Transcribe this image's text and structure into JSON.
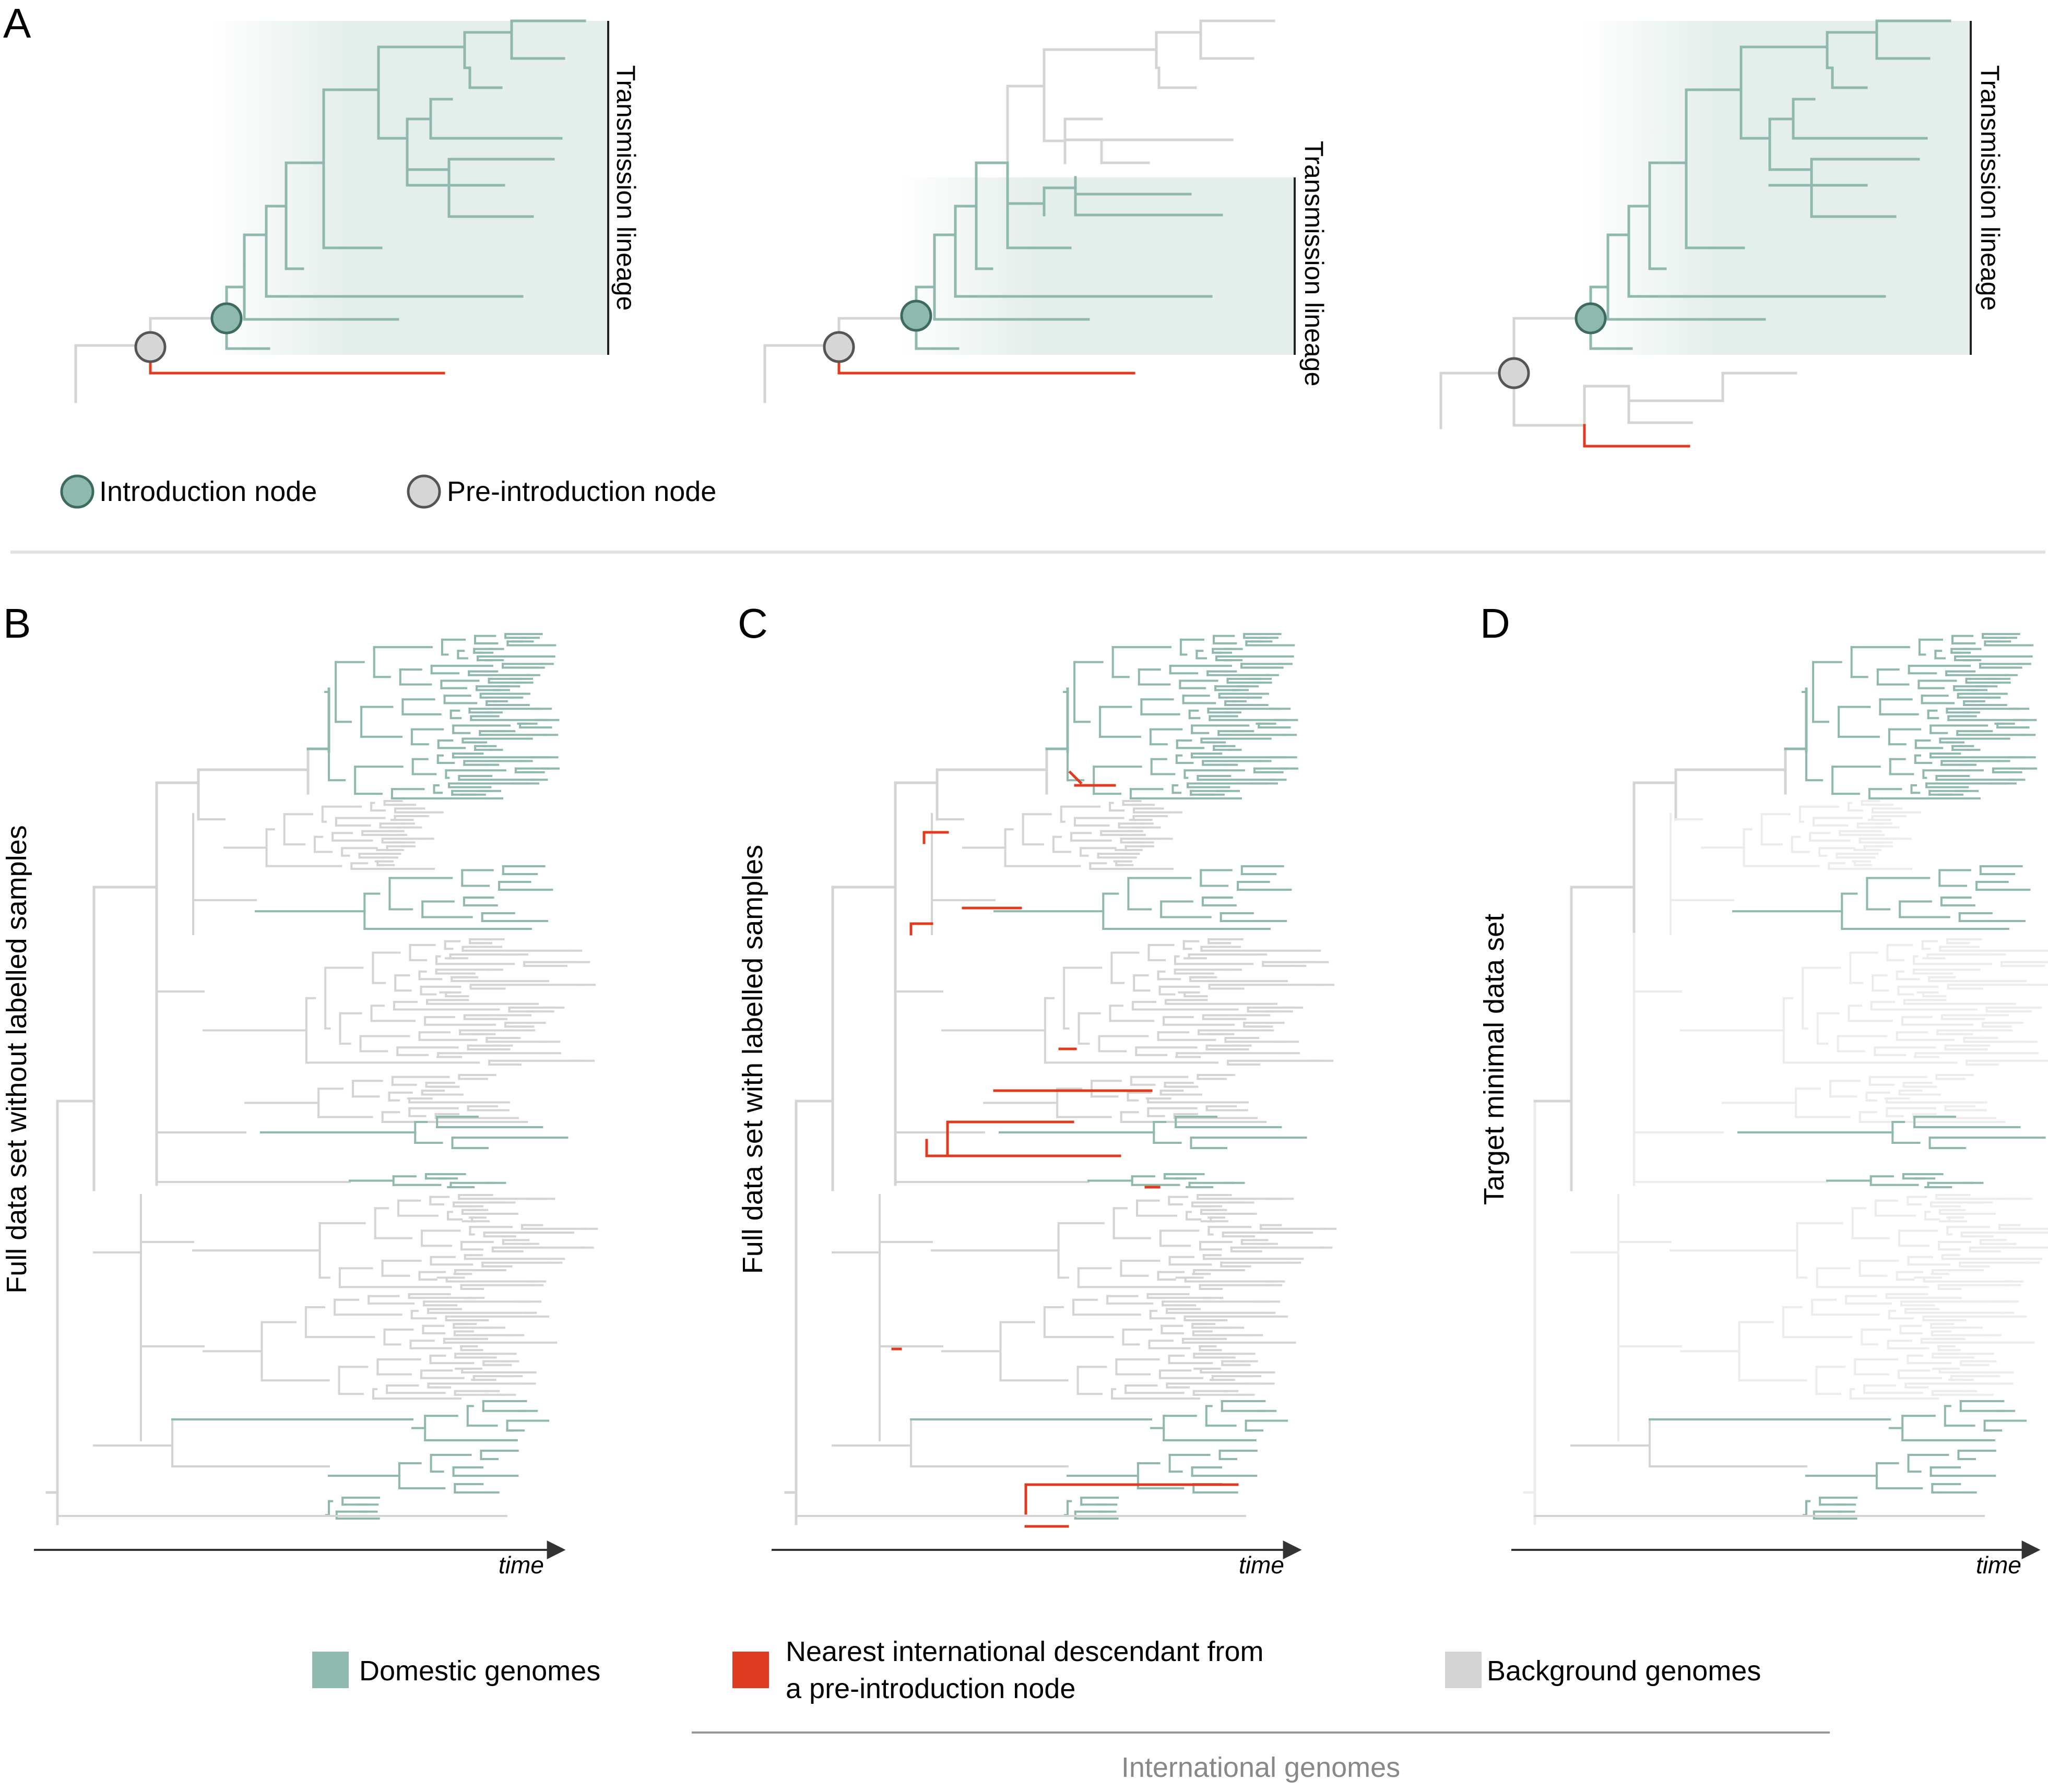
{
  "panel_a": {
    "letter": "A",
    "bracket_label": "Transmission lineage",
    "legend": {
      "introduction": "Introduction node",
      "pre_introduction": "Pre-introduction node"
    }
  },
  "panels": [
    {
      "letter": "B",
      "ylabel": "Full data set without labelled samples"
    },
    {
      "letter": "C",
      "ylabel": "Full data set with labelled samples"
    },
    {
      "letter": "D",
      "ylabel": "Target minimal data set"
    }
  ],
  "axis_label": "time",
  "legend": {
    "domestic": "Domestic genomes",
    "nearest_line1": "Nearest international descendant from",
    "nearest_line2": "a pre-introduction node",
    "background": "Background genomes",
    "international": "International genomes"
  },
  "colors": {
    "domestic": "#8fb8ae",
    "red": "#e03a1f",
    "background": "#d4d4d4",
    "faded": "#ececec",
    "shade": "#e4eeeb"
  }
}
